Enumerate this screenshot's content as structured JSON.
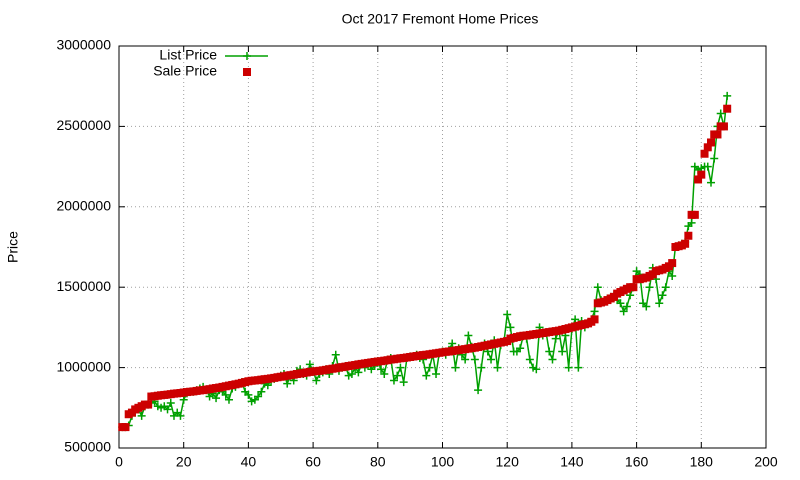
{
  "chart_data": {
    "type": "line",
    "title": "Oct 2017 Fremont Home Prices",
    "y_label": "Price",
    "x": [
      1,
      2,
      3,
      4,
      5,
      6,
      7,
      8,
      9,
      10,
      11,
      12,
      13,
      14,
      15,
      16,
      17,
      18,
      19,
      20,
      21,
      22,
      23,
      24,
      25,
      26,
      27,
      28,
      29,
      30,
      31,
      32,
      33,
      34,
      35,
      36,
      37,
      38,
      39,
      40,
      41,
      42,
      43,
      44,
      45,
      46,
      47,
      48,
      49,
      50,
      51,
      52,
      53,
      54,
      55,
      56,
      57,
      58,
      59,
      60,
      61,
      62,
      63,
      64,
      65,
      66,
      67,
      68,
      69,
      70,
      71,
      72,
      73,
      74,
      75,
      76,
      77,
      78,
      79,
      80,
      81,
      82,
      83,
      84,
      85,
      86,
      87,
      88,
      89,
      90,
      91,
      92,
      93,
      94,
      95,
      96,
      97,
      98,
      99,
      100,
      101,
      102,
      103,
      104,
      105,
      106,
      107,
      108,
      109,
      110,
      111,
      112,
      113,
      114,
      115,
      116,
      117,
      118,
      119,
      120,
      121,
      122,
      123,
      124,
      125,
      126,
      127,
      128,
      129,
      130,
      131,
      132,
      133,
      134,
      135,
      136,
      137,
      138,
      139,
      140,
      141,
      142,
      143,
      144,
      145,
      146,
      147,
      148,
      149,
      150,
      151,
      152,
      153,
      154,
      155,
      156,
      157,
      158,
      159,
      160,
      161,
      162,
      163,
      164,
      165,
      166,
      167,
      168,
      169,
      170,
      171,
      172,
      173,
      174,
      175,
      176,
      177,
      178,
      179,
      180,
      181,
      182,
      183,
      184,
      185,
      186,
      187,
      188
    ],
    "series": [
      {
        "name": "List Price",
        "color": "#00a000",
        "style": "linespoints",
        "values": [
          630000,
          630000,
          640000,
          700000,
          720000,
          740000,
          700000,
          760000,
          770000,
          780000,
          790000,
          760000,
          750000,
          760000,
          740000,
          780000,
          700000,
          720000,
          700000,
          800000,
          840000,
          850000,
          850000,
          860000,
          870000,
          880000,
          860000,
          820000,
          840000,
          810000,
          860000,
          850000,
          830000,
          800000,
          870000,
          880000,
          900000,
          910000,
          850000,
          830000,
          790000,
          800000,
          820000,
          850000,
          900000,
          890000,
          920000,
          930000,
          940000,
          950000,
          960000,
          900000,
          950000,
          920000,
          980000,
          990000,
          960000,
          950000,
          1020000,
          980000,
          920000,
          960000,
          970000,
          990000,
          960000,
          1010000,
          1080000,
          980000,
          1000000,
          1010000,
          950000,
          960000,
          1000000,
          970000,
          1020000,
          1000000,
          1030000,
          990000,
          1010000,
          1040000,
          990000,
          960000,
          1050000,
          1060000,
          920000,
          950000,
          1000000,
          910000,
          1060000,
          1070000,
          1070000,
          1080000,
          1060000,
          1050000,
          950000,
          1000000,
          1080000,
          960000,
          1090000,
          1100000,
          1080000,
          1110000,
          1150000,
          1000000,
          1120000,
          1080000,
          1050000,
          1200000,
          1130000,
          1050000,
          860000,
          1000000,
          1150000,
          1100000,
          1050000,
          1170000,
          1000000,
          1140000,
          1160000,
          1330000,
          1250000,
          1100000,
          1100000,
          1120000,
          1200000,
          1180000,
          1050000,
          1000000,
          990000,
          1250000,
          1200000,
          1220000,
          1100000,
          1050000,
          1180000,
          1230000,
          1100000,
          1200000,
          1000000,
          1240000,
          1300000,
          1000000,
          1290000,
          1250000,
          1280000,
          1300000,
          1350000,
          1500000,
          1420000,
          1410000,
          1430000,
          1440000,
          1450000,
          1420000,
          1400000,
          1350000,
          1380000,
          1450000,
          1500000,
          1600000,
          1580000,
          1400000,
          1380000,
          1500000,
          1620000,
          1550000,
          1400000,
          1450000,
          1500000,
          1600000,
          1570000,
          1750000,
          1760000,
          1770000,
          1780000,
          1880000,
          1900000,
          2250000,
          2230000,
          2240000,
          2250000,
          2250000,
          2150000,
          2300000,
          2500000,
          2580000,
          2500000,
          2690000
        ]
      },
      {
        "name": "Sale Price",
        "color": "#cc0000",
        "style": "points",
        "values": [
          630000,
          630000,
          710000,
          720000,
          740000,
          750000,
          760000,
          770000,
          770000,
          820000,
          822000,
          825000,
          828000,
          830000,
          832000,
          835000,
          838000,
          840000,
          842000,
          845000,
          848000,
          850000,
          852000,
          855000,
          858000,
          860000,
          863000,
          866000,
          870000,
          873000,
          876000,
          880000,
          884000,
          888000,
          892000,
          896000,
          900000,
          905000,
          910000,
          915000,
          918000,
          920000,
          922000,
          925000,
          928000,
          930000,
          933000,
          936000,
          940000,
          943000,
          946000,
          950000,
          953000,
          956000,
          960000,
          963000,
          966000,
          970000,
          973000,
          976000,
          978000,
          980000,
          983000,
          986000,
          990000,
          993000,
          996000,
          1000000,
          1003000,
          1006000,
          1010000,
          1013000,
          1016000,
          1020000,
          1023000,
          1026000,
          1029000,
          1032000,
          1035000,
          1038000,
          1040000,
          1043000,
          1046000,
          1050000,
          1052000,
          1055000,
          1058000,
          1060000,
          1063000,
          1066000,
          1069000,
          1072000,
          1075000,
          1078000,
          1080000,
          1083000,
          1086000,
          1089000,
          1092000,
          1095000,
          1098000,
          1100000,
          1103000,
          1106000,
          1109000,
          1112000,
          1115000,
          1118000,
          1121000,
          1124000,
          1128000,
          1132000,
          1136000,
          1140000,
          1144000,
          1148000,
          1152000,
          1156000,
          1160000,
          1165000,
          1180000,
          1185000,
          1190000,
          1195000,
          1198000,
          1200000,
          1203000,
          1206000,
          1209000,
          1212000,
          1215000,
          1218000,
          1221000,
          1224000,
          1227000,
          1230000,
          1235000,
          1240000,
          1245000,
          1250000,
          1255000,
          1260000,
          1265000,
          1270000,
          1275000,
          1285000,
          1300000,
          1400000,
          1405000,
          1410000,
          1420000,
          1430000,
          1440000,
          1460000,
          1470000,
          1480000,
          1490000,
          1500000,
          1500000,
          1550000,
          1550000,
          1555000,
          1560000,
          1570000,
          1580000,
          1600000,
          1605000,
          1610000,
          1620000,
          1630000,
          1650000,
          1750000,
          1755000,
          1760000,
          1770000,
          1820000,
          1950000,
          1950000,
          2170000,
          2200000,
          2330000,
          2370000,
          2400000,
          2450000,
          2450000,
          2500000,
          2500000,
          2610000
        ]
      }
    ],
    "xlim": [
      0,
      200
    ],
    "xticks": [
      0,
      20,
      40,
      60,
      80,
      100,
      120,
      140,
      160,
      180,
      200
    ],
    "ylim": [
      500000,
      3000000
    ],
    "yticks": [
      500000,
      1000000,
      1500000,
      2000000,
      2500000,
      3000000
    ],
    "grid": true,
    "legend": "top left"
  }
}
